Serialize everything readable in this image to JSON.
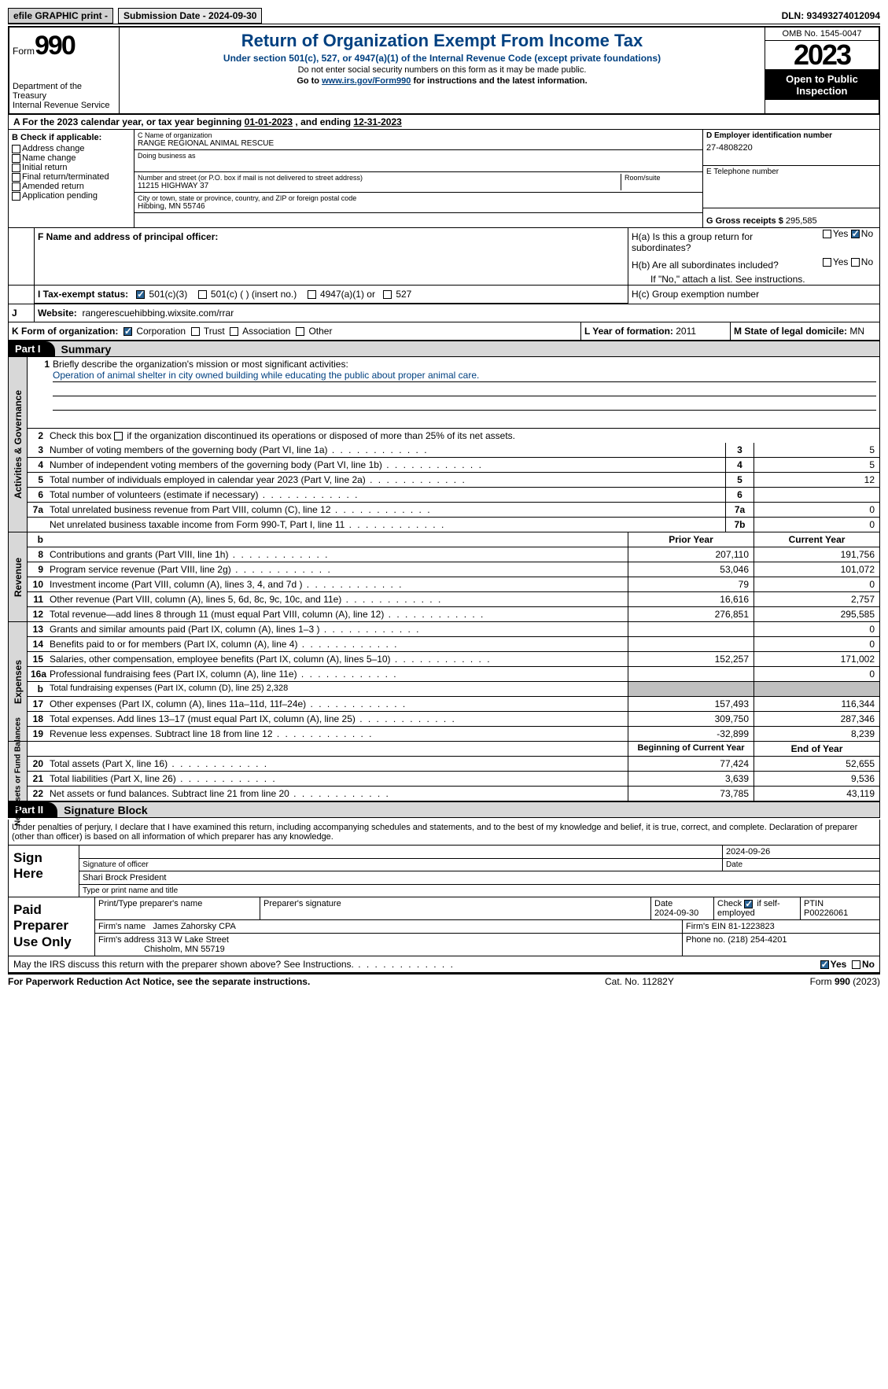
{
  "topbar": {
    "efile": "efile GRAPHIC print -",
    "subLabel": "Submission Date - 2024-09-30",
    "dln": "DLN: 93493274012094"
  },
  "header": {
    "formWord": "Form",
    "form990": "990",
    "dept": "Department of the Treasury",
    "irs": "Internal Revenue Service",
    "title": "Return of Organization Exempt From Income Tax",
    "sub": "Under section 501(c), 527, or 4947(a)(1) of the Internal Revenue Code (except private foundations)",
    "note1": "Do not enter social security numbers on this form as it may be made public.",
    "note2a": "Go to ",
    "note2link": "www.irs.gov/Form990",
    "note2b": " for instructions and the latest information.",
    "omb": "OMB No. 1545-0047",
    "year": "2023",
    "open": "Open to Public Inspection"
  },
  "lineA": {
    "pre": "A For the 2023 calendar year, or tax year beginning ",
    "begin": "01-01-2023",
    "mid": " , and ending ",
    "end": "12-31-2023"
  },
  "boxB": {
    "label": "B Check if applicable:",
    "opts": [
      "Address change",
      "Name change",
      "Initial return",
      "Final return/terminated",
      "Amended return",
      "Application pending"
    ]
  },
  "boxC": {
    "nameLbl": "C Name of organization",
    "name": "RANGE REGIONAL ANIMAL RESCUE",
    "dbaLbl": "Doing business as",
    "dba": "",
    "streetLbl": "Number and street (or P.O. box if mail is not delivered to street address)",
    "street": "11215 HIGHWAY 37",
    "roomLbl": "Room/suite",
    "room": "",
    "cityLbl": "City or town, state or province, country, and ZIP or foreign postal code",
    "city": "Hibbing, MN  55746"
  },
  "boxD": {
    "lbl": "D Employer identification number",
    "val": "27-4808220"
  },
  "boxE": {
    "lbl": "E Telephone number",
    "val": ""
  },
  "boxG": {
    "lbl": "G Gross receipts $ ",
    "val": "295,585"
  },
  "boxF": {
    "lbl": "F  Name and address of principal officer:",
    "val": ""
  },
  "boxH": {
    "a": "H(a)  Is this a group return for subordinates?",
    "aYes": "Yes",
    "aNo": "No",
    "aChecked": "no",
    "b": "H(b)  Are all subordinates included?",
    "bYes": "Yes",
    "bNo": "No",
    "bNote": "If \"No,\" attach a list. See instructions.",
    "c": "H(c)  Group exemption number"
  },
  "boxI": {
    "lbl": "I  Tax-exempt status:",
    "o1": "501(c)(3)",
    "o2": "501(c) (  ) (insert no.)",
    "o3": "4947(a)(1) or",
    "o4": "527"
  },
  "boxJ": {
    "lbl": "J  Website:",
    "val": "rangerescuehibbing.wixsite.com/rrar"
  },
  "boxK": {
    "lbl": "K Form of organization:",
    "o1": "Corporation",
    "o2": "Trust",
    "o3": "Association",
    "o4": "Other"
  },
  "boxL": {
    "lbl": "L Year of formation: ",
    "val": "2011"
  },
  "boxM": {
    "lbl": "M State of legal domicile: ",
    "val": "MN"
  },
  "partI": {
    "num": "Part I",
    "title": "Summary"
  },
  "gov": {
    "tab": "Activities & Governance",
    "l1lbl": "Briefly describe the organization's mission or most significant activities:",
    "l1val": "Operation of animal shelter in city owned building while educating the public about proper animal care.",
    "l2": "Check this box        if the organization discontinued its operations or disposed of more than 25% of its net assets.",
    "rows": [
      {
        "n": "3",
        "d": "Number of voting members of the governing body (Part VI, line 1a)",
        "b": "3",
        "v": "5"
      },
      {
        "n": "4",
        "d": "Number of independent voting members of the governing body (Part VI, line 1b)",
        "b": "4",
        "v": "5"
      },
      {
        "n": "5",
        "d": "Total number of individuals employed in calendar year 2023 (Part V, line 2a)",
        "b": "5",
        "v": "12"
      },
      {
        "n": "6",
        "d": "Total number of volunteers (estimate if necessary)",
        "b": "6",
        "v": ""
      },
      {
        "n": "7a",
        "d": "Total unrelated business revenue from Part VIII, column (C), line 12",
        "b": "7a",
        "v": "0"
      },
      {
        "n": "",
        "d": "Net unrelated business taxable income from Form 990-T, Part I, line 11",
        "b": "7b",
        "v": "0"
      }
    ]
  },
  "rev": {
    "tab": "Revenue",
    "hdr1": "Prior Year",
    "hdr2": "Current Year",
    "rows": [
      {
        "n": "8",
        "d": "Contributions and grants (Part VIII, line 1h)",
        "c1": "207,110",
        "c2": "191,756"
      },
      {
        "n": "9",
        "d": "Program service revenue (Part VIII, line 2g)",
        "c1": "53,046",
        "c2": "101,072"
      },
      {
        "n": "10",
        "d": "Investment income (Part VIII, column (A), lines 3, 4, and 7d )",
        "c1": "79",
        "c2": "0"
      },
      {
        "n": "11",
        "d": "Other revenue (Part VIII, column (A), lines 5, 6d, 8c, 9c, 10c, and 11e)",
        "c1": "16,616",
        "c2": "2,757"
      },
      {
        "n": "12",
        "d": "Total revenue—add lines 8 through 11 (must equal Part VIII, column (A), line 12)",
        "c1": "276,851",
        "c2": "295,585"
      }
    ]
  },
  "exp": {
    "tab": "Expenses",
    "rows": [
      {
        "n": "13",
        "d": "Grants and similar amounts paid (Part IX, column (A), lines 1–3 )",
        "c1": "",
        "c2": "0"
      },
      {
        "n": "14",
        "d": "Benefits paid to or for members (Part IX, column (A), line 4)",
        "c1": "",
        "c2": "0"
      },
      {
        "n": "15",
        "d": "Salaries, other compensation, employee benefits (Part IX, column (A), lines 5–10)",
        "c1": "152,257",
        "c2": "171,002"
      },
      {
        "n": "16a",
        "d": "Professional fundraising fees (Part IX, column (A), line 11e)",
        "c1": "",
        "c2": "0"
      },
      {
        "n": "b",
        "d": "Total fundraising expenses (Part IX, column (D), line 25) 2,328",
        "shade": true
      },
      {
        "n": "17",
        "d": "Other expenses (Part IX, column (A), lines 11a–11d, 11f–24e)",
        "c1": "157,493",
        "c2": "116,344"
      },
      {
        "n": "18",
        "d": "Total expenses. Add lines 13–17 (must equal Part IX, column (A), line 25)",
        "c1": "309,750",
        "c2": "287,346"
      },
      {
        "n": "19",
        "d": "Revenue less expenses. Subtract line 18 from line 12",
        "c1": "-32,899",
        "c2": "8,239"
      }
    ]
  },
  "net": {
    "tab": "Net Assets or Fund Balances",
    "hdr1": "Beginning of Current Year",
    "hdr2": "End of Year",
    "rows": [
      {
        "n": "20",
        "d": "Total assets (Part X, line 16)",
        "c1": "77,424",
        "c2": "52,655"
      },
      {
        "n": "21",
        "d": "Total liabilities (Part X, line 26)",
        "c1": "3,639",
        "c2": "9,536"
      },
      {
        "n": "22",
        "d": "Net assets or fund balances. Subtract line 21 from line 20",
        "c1": "73,785",
        "c2": "43,119"
      }
    ]
  },
  "partII": {
    "num": "Part II",
    "title": "Signature Block"
  },
  "sig": {
    "decl": "Under penalties of perjury, I declare that I have examined this return, including accompanying schedules and statements, and to the best of my knowledge and belief, it is true, correct, and complete. Declaration of preparer (other than officer) is based on all information of which preparer has any knowledge.",
    "signHere": "Sign Here",
    "sigDate": "2024-09-26",
    "sigOfficer": "Signature of officer",
    "date": "Date",
    "officerName": "Shari Brock President",
    "typeLbl": "Type or print name and title"
  },
  "prep": {
    "lbl": "Paid Preparer Use Only",
    "h1": "Print/Type preparer's name",
    "h2": "Preparer's signature",
    "h3": "Date",
    "h3v": "2024-09-30",
    "h4a": "Check",
    "h4b": "if self-employed",
    "h5": "PTIN",
    "h5v": "P00226061",
    "firmLbl": "Firm's name",
    "firm": "James Zahorsky CPA",
    "einLbl": "Firm's EIN",
    "ein": "81-1223823",
    "addrLbl": "Firm's address",
    "addr1": "313 W Lake Street",
    "addr2": "Chisholm, MN  55719",
    "phoneLbl": "Phone no.",
    "phone": "(218) 254-4201"
  },
  "discuss": {
    "txt": "May the IRS discuss this return with the preparer shown above? See Instructions.",
    "yes": "Yes",
    "no": "No"
  },
  "foot": {
    "l": "For Paperwork Reduction Act Notice, see the separate instructions.",
    "c": "Cat. No. 11282Y",
    "r": "Form 990 (2023)"
  }
}
